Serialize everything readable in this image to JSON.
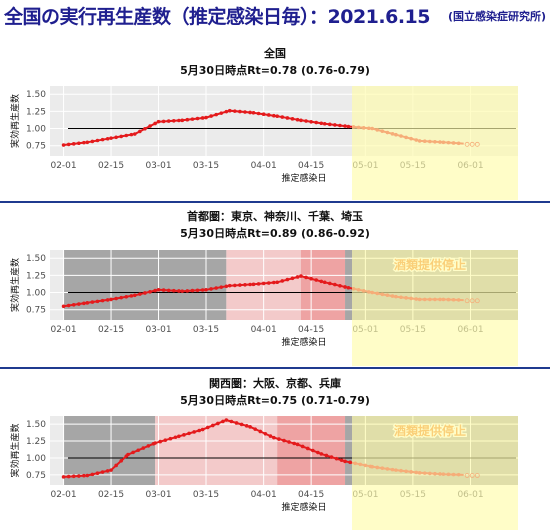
{
  "header": {
    "title": "全国の実行再生産数（推定感染日毎）：2021.6.15",
    "source": "(国立感染症研究所)"
  },
  "colors": {
    "title": "#1f1f8f",
    "series": "#e41a1c",
    "reference_line": "#000000",
    "highlight": "#fffbaa",
    "shade_dark": "#9e9e9e",
    "shade_pink": "#f4c6c6",
    "shade_red": "#ee9b9b",
    "alcohol_label": "#f07c1e"
  },
  "chart_data": [
    {
      "type": "line",
      "region": "全国",
      "subtitle": "5月30日時点Rt=0.78 (0.76-0.79)",
      "xlabel": "推定感染日",
      "ylabel": "実効再生産数",
      "x_ticks": [
        "02-01",
        "02-15",
        "03-01",
        "03-15",
        "04-01",
        "04-15",
        "05-01",
        "05-15",
        "06-01"
      ],
      "y_ticks": [
        "0.75",
        "1.00",
        "1.25",
        "1.50"
      ],
      "ylim": [
        0.6,
        1.62
      ],
      "xlim": [
        "2021-01-28",
        "2021-06-15"
      ],
      "reference_line": 1.0,
      "highlight_period": [
        "2021-04-28",
        "2021-06-15"
      ],
      "series_points": [
        [
          "2021-02-01",
          0.76
        ],
        [
          "2021-02-08",
          0.8
        ],
        [
          "2021-02-15",
          0.86
        ],
        [
          "2021-02-22",
          0.92
        ],
        [
          "2021-03-01",
          1.1
        ],
        [
          "2021-03-08",
          1.12
        ],
        [
          "2021-03-15",
          1.16
        ],
        [
          "2021-03-22",
          1.26
        ],
        [
          "2021-03-29",
          1.23
        ],
        [
          "2021-04-05",
          1.18
        ],
        [
          "2021-04-12",
          1.12
        ],
        [
          "2021-04-19",
          1.07
        ],
        [
          "2021-04-26",
          1.03
        ],
        [
          "2021-05-03",
          1.0
        ],
        [
          "2021-05-10",
          0.91
        ],
        [
          "2021-05-17",
          0.82
        ],
        [
          "2021-05-24",
          0.8
        ],
        [
          "2021-05-30",
          0.78
        ]
      ]
    },
    {
      "type": "line",
      "region": "首都圏：東京、神奈川、千葉、埼玉",
      "subtitle": "5月30日時点Rt=0.89 (0.86-0.92)",
      "xlabel": "推定感染日",
      "ylabel": "実効再生産数",
      "x_ticks": [
        "02-01",
        "02-15",
        "03-01",
        "03-15",
        "04-01",
        "04-15",
        "05-01",
        "05-15",
        "06-01"
      ],
      "y_ticks": [
        "0.75",
        "1.00",
        "1.25",
        "1.50"
      ],
      "ylim": [
        0.6,
        1.62
      ],
      "xlim": [
        "2021-01-28",
        "2021-06-15"
      ],
      "reference_line": 1.0,
      "highlight_period": [
        "2021-04-28",
        "2021-06-15"
      ],
      "annotation": "酒類提供停止",
      "shaded_periods": [
        {
          "start": "2021-02-01",
          "end": "2021-03-21",
          "shade": "dark"
        },
        {
          "start": "2021-03-21",
          "end": "2021-04-12",
          "shade": "pink"
        },
        {
          "start": "2021-04-12",
          "end": "2021-04-25",
          "shade": "red"
        },
        {
          "start": "2021-04-25",
          "end": "2021-06-15",
          "shade": "dark"
        }
      ],
      "series_points": [
        [
          "2021-02-01",
          0.8
        ],
        [
          "2021-02-08",
          0.85
        ],
        [
          "2021-02-15",
          0.9
        ],
        [
          "2021-02-22",
          0.96
        ],
        [
          "2021-03-01",
          1.04
        ],
        [
          "2021-03-08",
          1.02
        ],
        [
          "2021-03-15",
          1.04
        ],
        [
          "2021-03-22",
          1.1
        ],
        [
          "2021-03-29",
          1.12
        ],
        [
          "2021-04-05",
          1.15
        ],
        [
          "2021-04-12",
          1.24
        ],
        [
          "2021-04-19",
          1.15
        ],
        [
          "2021-04-26",
          1.07
        ],
        [
          "2021-05-03",
          1.0
        ],
        [
          "2021-05-10",
          0.94
        ],
        [
          "2021-05-17",
          0.9
        ],
        [
          "2021-05-24",
          0.9
        ],
        [
          "2021-05-30",
          0.89
        ]
      ]
    },
    {
      "type": "line",
      "region": "関西圏：大阪、京都、兵庫",
      "subtitle": "5月30日時点Rt=0.75 (0.71-0.79)",
      "xlabel": "推定感染日",
      "ylabel": "実効再生産数",
      "x_ticks": [
        "02-01",
        "02-15",
        "03-01",
        "03-15",
        "04-01",
        "04-15",
        "05-01",
        "05-15",
        "06-01"
      ],
      "y_ticks": [
        "0.75",
        "1.00",
        "1.25",
        "1.50"
      ],
      "ylim": [
        0.6,
        1.62
      ],
      "xlim": [
        "2021-01-28",
        "2021-06-15"
      ],
      "reference_line": 1.0,
      "highlight_period": [
        "2021-04-28",
        "2021-06-15"
      ],
      "annotation": "酒類提供停止",
      "shaded_periods": [
        {
          "start": "2021-02-01",
          "end": "2021-02-28",
          "shade": "dark"
        },
        {
          "start": "2021-02-28",
          "end": "2021-04-05",
          "shade": "pink"
        },
        {
          "start": "2021-04-05",
          "end": "2021-04-25",
          "shade": "red"
        },
        {
          "start": "2021-04-25",
          "end": "2021-06-15",
          "shade": "dark"
        }
      ],
      "series_points": [
        [
          "2021-02-01",
          0.72
        ],
        [
          "2021-02-08",
          0.74
        ],
        [
          "2021-02-15",
          0.82
        ],
        [
          "2021-02-20",
          1.05
        ],
        [
          "2021-02-28",
          1.22
        ],
        [
          "2021-03-07",
          1.32
        ],
        [
          "2021-03-14",
          1.42
        ],
        [
          "2021-03-21",
          1.56
        ],
        [
          "2021-03-28",
          1.46
        ],
        [
          "2021-04-04",
          1.3
        ],
        [
          "2021-04-11",
          1.2
        ],
        [
          "2021-04-18",
          1.06
        ],
        [
          "2021-04-25",
          0.95
        ],
        [
          "2021-05-03",
          0.87
        ],
        [
          "2021-05-10",
          0.82
        ],
        [
          "2021-05-17",
          0.78
        ],
        [
          "2021-05-24",
          0.76
        ],
        [
          "2021-05-30",
          0.75
        ]
      ]
    }
  ]
}
